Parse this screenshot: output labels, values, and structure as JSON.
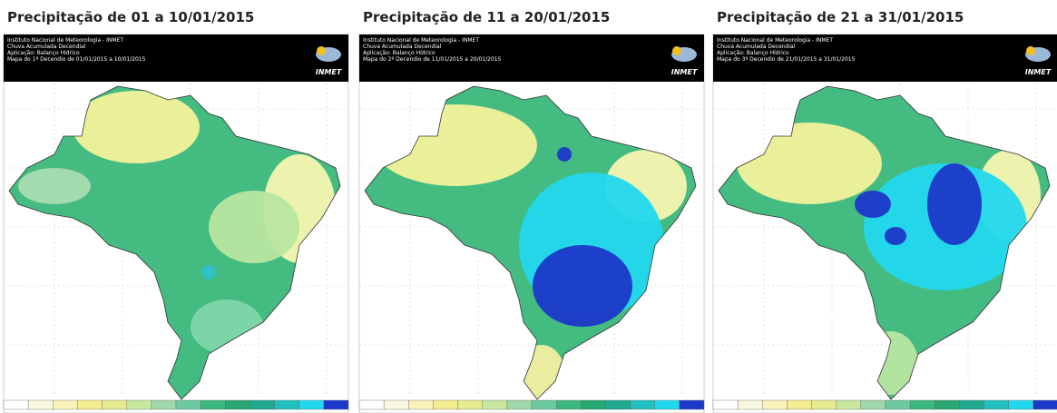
{
  "panels": [
    {
      "title": "Precipitação de 01 a 10/01/2015",
      "header": [
        "Instituto Nacional de Meteorologia - INMET",
        "Chuva Acumulada Decendial",
        "Aplicação: Balanço Hídrico",
        "Mapa do 1º Decendio de 01/01/2015 a 10/01/2015"
      ],
      "logo": "INMET"
    },
    {
      "title": "Precipitação de 11 a 20/01/2015",
      "header": [
        "Instituto Nacional de Meteorologia - INMET",
        "Chuva Acumulada Decendial",
        "Aplicação: Balanço Hídrico",
        "Mapa do 2º Decendio de 11/01/2015 a 20/01/2015"
      ],
      "logo": "INMET"
    },
    {
      "title": "Precipitação de 21 a 31/01/2015",
      "header": [
        "Instituto Nacional de Meteorologia - INMET",
        "Chuva Acumulada Decendial",
        "Aplicação: Balanço Hídrico",
        "Mapa do 3º Decendio de 21/01/2015 a 31/01/2015"
      ],
      "logo": "INMET"
    }
  ]
}
